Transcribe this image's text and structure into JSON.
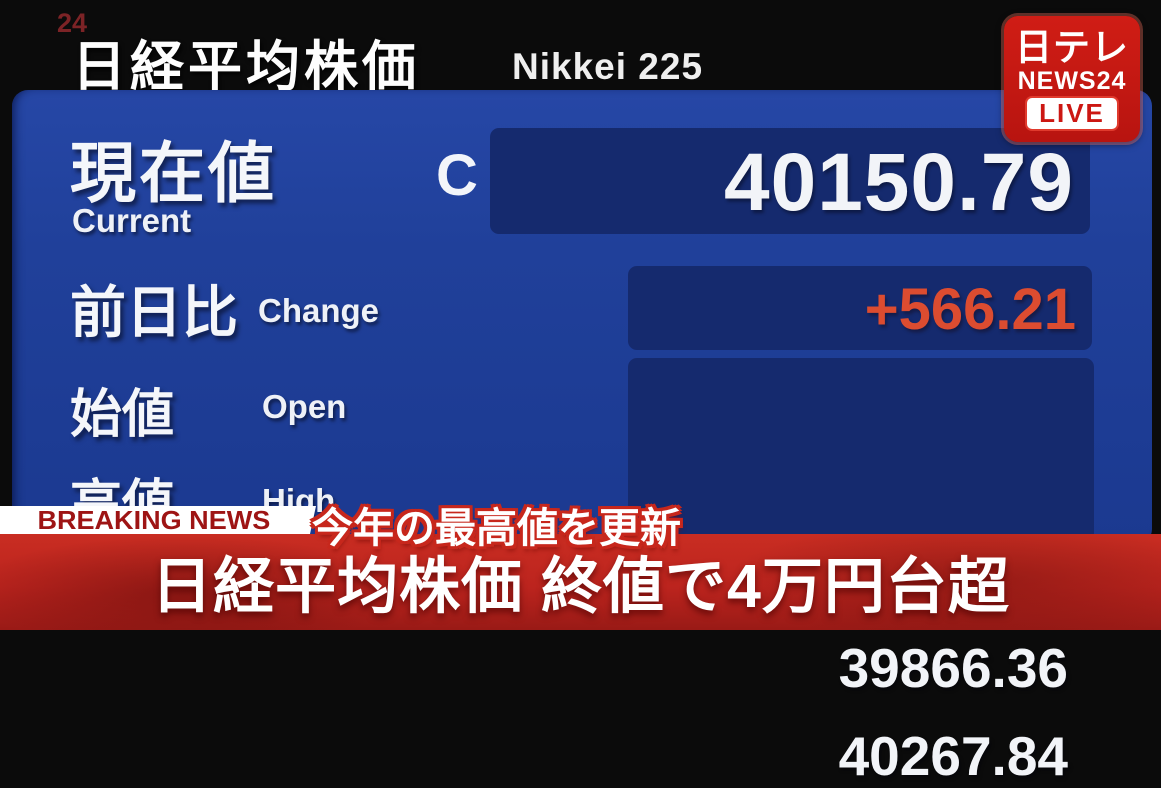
{
  "watermark": "24",
  "header": {
    "title_jp": "日経平均株価",
    "title_en": "Nikkei 225"
  },
  "logo": {
    "brand": "日テレ",
    "channel": "NEWS24",
    "live_badge": "LIVE"
  },
  "quote_board": {
    "index_name": "Nikkei 225",
    "rows": [
      {
        "label_jp": "現在値",
        "label_en": "Current",
        "marker": "C",
        "value": "40150.79"
      },
      {
        "label_jp": "前日比",
        "label_en": "Change",
        "value": "+566.21"
      },
      {
        "label_jp": "始値",
        "label_en": "Open",
        "value": "39866.36"
      },
      {
        "label_jp": "高値",
        "label_en": "High",
        "value": "40267.84"
      }
    ]
  },
  "breaking": {
    "label": "BREAKING NEWS",
    "subtitle": "今年の最高値を更新",
    "headline": "日経平均株価 終値で4万円台超"
  },
  "colors": {
    "panel_blue": "#20409a",
    "value_box_navy": "#152a6e",
    "change_positive": "#dc4c30",
    "breaking_red": "#9e1414",
    "band_red": "#bc241e",
    "logo_red": "#c41a14",
    "text_white": "#f2f4f8"
  }
}
